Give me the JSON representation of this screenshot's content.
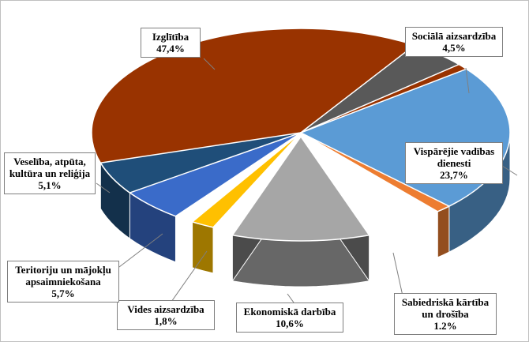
{
  "chart_data": {
    "type": "pie",
    "slices": [
      {
        "label": "Izglītība",
        "value_text": "47,4%",
        "value": 47.4,
        "color": "#993300"
      },
      {
        "label": "Sociālā aizsardzība",
        "value_text": "4,5%",
        "value": 4.5,
        "color": "#595959"
      },
      {
        "label": "Vispārējie vadības dienesti",
        "value_text": "23,7%",
        "value": 23.7,
        "color": "#5b9bd5"
      },
      {
        "label": "Sabiedriskā kārtība un drošība",
        "value_text": "1.2%",
        "value": 1.2,
        "color": "#ed7d31"
      },
      {
        "label": "Ekonomiskā darbība",
        "value_text": "10,6%",
        "value": 10.6,
        "color": "#a6a6a6"
      },
      {
        "label": "Vides aizsardzība",
        "value_text": "1,8%",
        "value": 1.8,
        "color": "#ffc000"
      },
      {
        "label": "Teritoriju un mājokļu apsaimniekošana",
        "value_text": "5,7%",
        "value": 5.7,
        "color": "#3a6bc9"
      },
      {
        "label": "Veselība, atpūta, kultūra un reliģija",
        "value_text": "5,1%",
        "value": 5.1,
        "color": "#1f4e79"
      }
    ]
  },
  "labels": {
    "izglitiba": {
      "line1": "Izglītība",
      "line2": "47,4%"
    },
    "sociala": {
      "line1": "Sociālā aizsardzība",
      "line2": "4,5%"
    },
    "visparejie": {
      "line1": "Vispārējie vadības",
      "line2": "dienesti",
      "line3": "23,7%"
    },
    "sabiedriska": {
      "line1": "Sabiedriskā kārtība",
      "line2": "un drošība",
      "line3": "1.2%"
    },
    "ekonomiska": {
      "line1": "Ekonomiskā darbība",
      "line2": "10,6%"
    },
    "vides": {
      "line1": "Vides aizsardzība",
      "line2": "1,8%"
    },
    "teritoriju": {
      "line1": "Teritoriju un mājokļu",
      "line2": "apsaimniekošana",
      "line3": "5,7%"
    },
    "veseliba": {
      "line1": "Veselība, atpūta,",
      "line2": "kultūra un reliģija",
      "line3": "5,1%"
    }
  }
}
